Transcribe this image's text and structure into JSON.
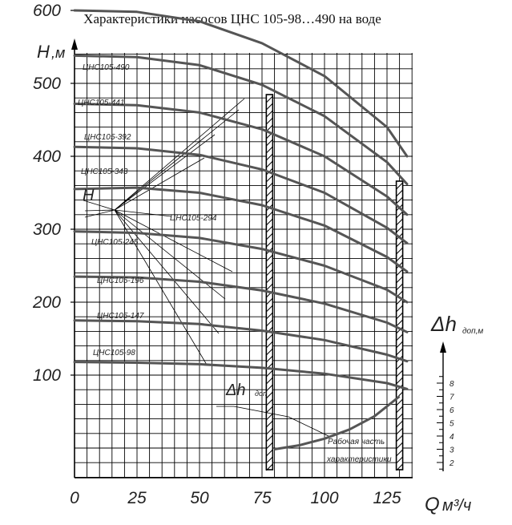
{
  "chart_data": {
    "type": "line",
    "title": "Характеристики насосов ЦНС 105-98…490 на воде",
    "y_axis": {
      "label_main": "H",
      "label_unit": ",м",
      "ticks": [
        100,
        200,
        300,
        400,
        500,
        600
      ],
      "range": [
        0,
        630
      ]
    },
    "x_axis": {
      "label_main": "Q",
      "label_unit": "м³/ч",
      "ticks": [
        0,
        25,
        50,
        75,
        100,
        125
      ],
      "range": [
        0,
        135
      ]
    },
    "right_axis": {
      "label_main": "Δh",
      "label_unit": "доп,м",
      "ticks": [
        2,
        3,
        4,
        5,
        6,
        7,
        8
      ]
    },
    "grid": true,
    "working_zone": {
      "q_min": 78,
      "q_max": 130
    },
    "series": [
      {
        "name": "ЦНС105-490",
        "x": [
          0,
          25,
          50,
          75,
          100,
          125,
          133
        ],
        "y": [
          600,
          598,
          585,
          555,
          510,
          440,
          400
        ]
      },
      {
        "name": "ЦНС105-441",
        "x": [
          0,
          25,
          50,
          75,
          100,
          125,
          133
        ],
        "y": [
          538,
          536,
          525,
          498,
          455,
          392,
          362
        ]
      },
      {
        "name": "ЦНС105-392",
        "x": [
          0,
          25,
          50,
          75,
          100,
          125,
          133
        ],
        "y": [
          472,
          470,
          460,
          437,
          400,
          345,
          320
        ]
      },
      {
        "name": "ЦНС105-343",
        "x": [
          0,
          25,
          50,
          75,
          100,
          125,
          133
        ],
        "y": [
          413,
          411,
          402,
          382,
          350,
          302,
          281
        ]
      },
      {
        "name": "ЦНС105-294",
        "x": [
          0,
          25,
          50,
          75,
          100,
          125,
          133
        ],
        "y": [
          355,
          357,
          350,
          333,
          305,
          262,
          242
        ]
      },
      {
        "name": "ЦНС105-245",
        "x": [
          0,
          25,
          50,
          75,
          100,
          125,
          133
        ],
        "y": [
          297,
          295,
          288,
          273,
          250,
          217,
          200
        ]
      },
      {
        "name": "ЦНС105-196",
        "x": [
          0,
          25,
          50,
          75,
          100,
          125,
          133
        ],
        "y": [
          235,
          234,
          228,
          216,
          198,
          172,
          159
        ]
      },
      {
        "name": "ЦНС105-147",
        "x": [
          0,
          25,
          50,
          75,
          100,
          125,
          133
        ],
        "y": [
          175,
          174,
          170,
          161,
          148,
          128,
          119
        ]
      },
      {
        "name": "ЦНС105-98",
        "x": [
          0,
          25,
          50,
          75,
          100,
          125,
          133
        ],
        "y": [
          118,
          117,
          115,
          110,
          102,
          89,
          81
        ]
      }
    ],
    "dh_series": {
      "name": "Δh доп",
      "x": [
        80,
        90,
        100,
        110,
        120,
        130
      ],
      "dh": [
        3.0,
        3.3,
        3.8,
        4.5,
        5.5,
        7.0
      ]
    },
    "annotations": {
      "h_label": "H",
      "dh_main": "Δh",
      "dh_sub": "доп",
      "working_line1": "Рабочая часть",
      "working_line2": "характеристики"
    }
  }
}
